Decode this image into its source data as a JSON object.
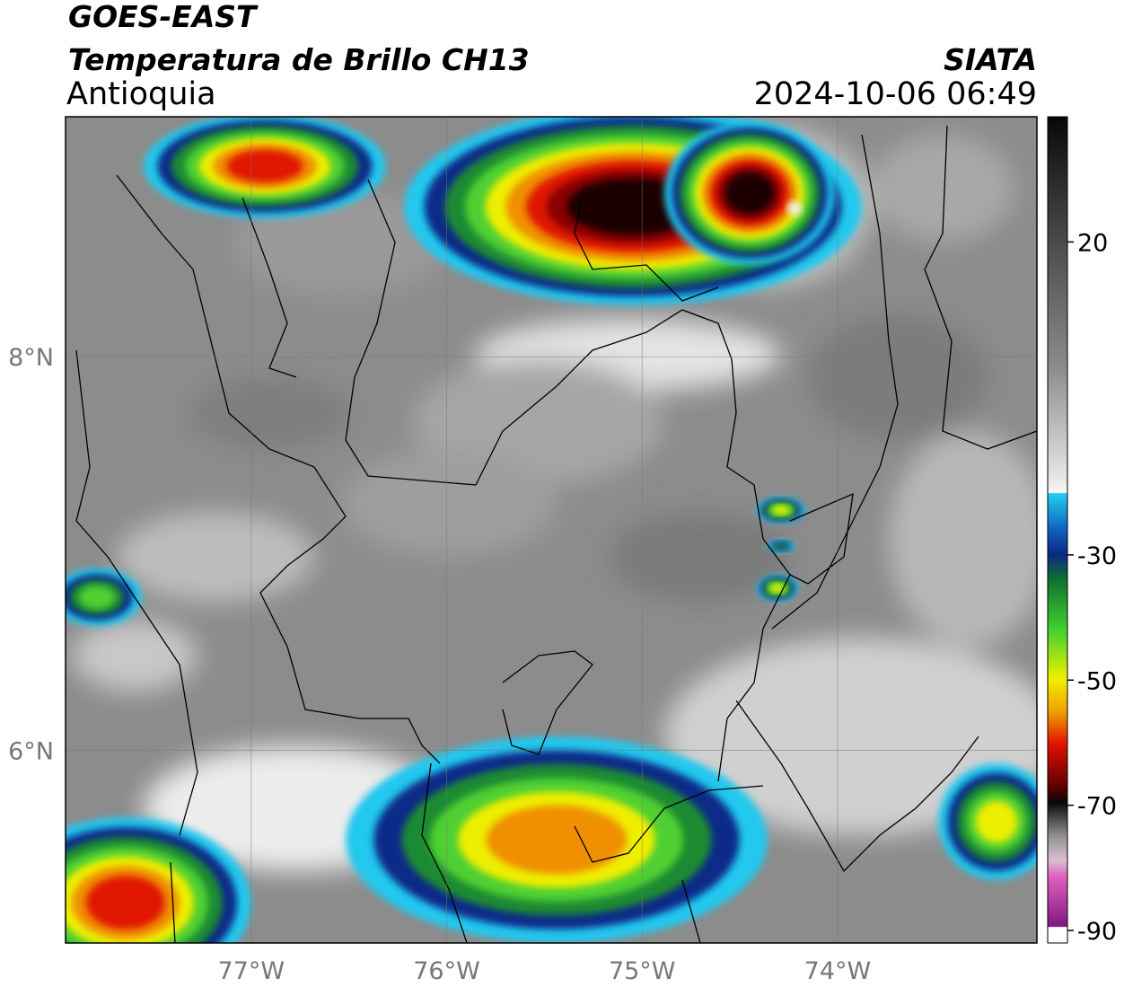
{
  "header": {
    "satellite": "GOES-EAST",
    "product": "Temperatura de Brillo CH13",
    "region": "Antioquia",
    "source": "SIATA",
    "datetime": "2024-10-06 06:49"
  },
  "map": {
    "lonlim": [
      -77.95,
      -72.98
    ],
    "latlim": [
      5.02,
      9.22
    ],
    "lonticks": [
      {
        "value": -77,
        "label": "77°W"
      },
      {
        "value": -76,
        "label": "76°W"
      },
      {
        "value": -75,
        "label": "75°W"
      },
      {
        "value": -74,
        "label": "74°W"
      }
    ],
    "latticks": [
      {
        "value": 8,
        "label": "8°N"
      },
      {
        "value": 6,
        "label": "6°N"
      }
    ],
    "grid": true
  },
  "colorbar": {
    "lim": [
      -92,
      40
    ],
    "ticks": [
      20,
      -30,
      -50,
      -70,
      -90
    ]
  }
}
